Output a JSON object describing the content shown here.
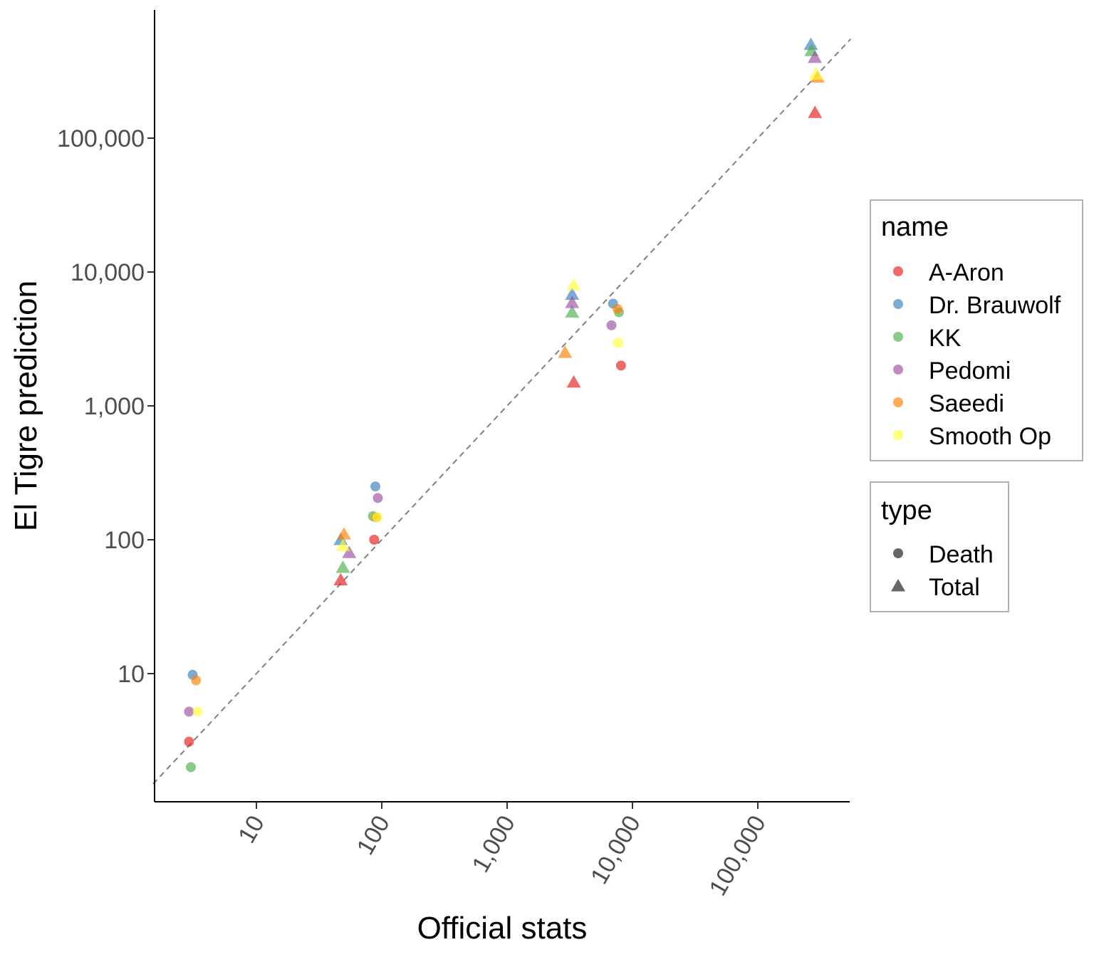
{
  "chart_data": {
    "type": "scatter",
    "xlabel": "Official stats",
    "ylabel": "El Tigre prediction",
    "x_scale": "log10",
    "y_scale": "log10",
    "xlim": [
      1.5,
      550000
    ],
    "ylim": [
      1.5,
      650000
    ],
    "x_ticks": [
      10,
      100,
      1000,
      10000,
      100000
    ],
    "x_tick_labels": [
      "10",
      "100",
      "1,000",
      "10,000",
      "100,000"
    ],
    "y_ticks": [
      10,
      100,
      1000,
      10000,
      100000
    ],
    "y_tick_labels": [
      "10",
      "100",
      "1,000",
      "10,000",
      "100,000"
    ],
    "reference_line": "y = x (dashed)",
    "grid": false,
    "legend_position": "right",
    "legend_name": {
      "title": "name",
      "entries": [
        {
          "label": "A-Aron",
          "color": "#E41A1C"
        },
        {
          "label": "Dr. Brauwolf",
          "color": "#377EB8"
        },
        {
          "label": "KK",
          "color": "#4DAF4A"
        },
        {
          "label": "Pedomi",
          "color": "#984EA3"
        },
        {
          "label": "Saeedi",
          "color": "#FF7F00"
        },
        {
          "label": "Smooth Op",
          "color": "#FFFF33"
        }
      ]
    },
    "legend_type": {
      "title": "type",
      "entries": [
        {
          "label": "Death",
          "shape": "circle"
        },
        {
          "label": "Total",
          "shape": "triangle"
        }
      ]
    },
    "series": [
      {
        "name": "A-Aron",
        "color": "#E41A1C",
        "points": [
          {
            "x": 2.9,
            "y": 3.1,
            "type": "Death"
          },
          {
            "x": 87,
            "y": 100,
            "type": "Death"
          },
          {
            "x": 8100,
            "y": 2000,
            "type": "Death"
          },
          {
            "x": 47,
            "y": 50,
            "type": "Total"
          },
          {
            "x": 3400,
            "y": 1500,
            "type": "Total"
          },
          {
            "x": 286000,
            "y": 155000,
            "type": "Total"
          }
        ]
      },
      {
        "name": "Dr. Brauwolf",
        "color": "#377EB8",
        "points": [
          {
            "x": 3.1,
            "y": 9.8,
            "type": "Death"
          },
          {
            "x": 89,
            "y": 250,
            "type": "Death"
          },
          {
            "x": 7000,
            "y": 5800,
            "type": "Death"
          },
          {
            "x": 47,
            "y": 100,
            "type": "Total"
          },
          {
            "x": 3300,
            "y": 6800,
            "type": "Total"
          },
          {
            "x": 265000,
            "y": 500000,
            "type": "Total"
          }
        ]
      },
      {
        "name": "KK",
        "color": "#4DAF4A",
        "points": [
          {
            "x": 3.0,
            "y": 2.0,
            "type": "Death"
          },
          {
            "x": 85,
            "y": 150,
            "type": "Death"
          },
          {
            "x": 7800,
            "y": 5000,
            "type": "Death"
          },
          {
            "x": 49,
            "y": 62,
            "type": "Total"
          },
          {
            "x": 3300,
            "y": 5000,
            "type": "Total"
          },
          {
            "x": 268000,
            "y": 450000,
            "type": "Total"
          }
        ]
      },
      {
        "name": "Pedomi",
        "color": "#984EA3",
        "points": [
          {
            "x": 2.9,
            "y": 5.2,
            "type": "Death"
          },
          {
            "x": 93,
            "y": 205,
            "type": "Death"
          },
          {
            "x": 6800,
            "y": 4000,
            "type": "Death"
          },
          {
            "x": 55,
            "y": 80,
            "type": "Total"
          },
          {
            "x": 3300,
            "y": 5900,
            "type": "Total"
          },
          {
            "x": 285000,
            "y": 400000,
            "type": "Total"
          }
        ]
      },
      {
        "name": "Saeedi",
        "color": "#FF7F00",
        "points": [
          {
            "x": 3.3,
            "y": 8.9,
            "type": "Death"
          },
          {
            "x": 90,
            "y": 147,
            "type": "Death"
          },
          {
            "x": 7600,
            "y": 5300,
            "type": "Death"
          },
          {
            "x": 50,
            "y": 110,
            "type": "Total"
          },
          {
            "x": 2900,
            "y": 2500,
            "type": "Total"
          },
          {
            "x": 300000,
            "y": 285000,
            "type": "Total"
          }
        ]
      },
      {
        "name": "Smooth Op",
        "color": "#FFFF33",
        "points": [
          {
            "x": 3.4,
            "y": 5.2,
            "type": "Death"
          },
          {
            "x": 92,
            "y": 147,
            "type": "Death"
          },
          {
            "x": 7700,
            "y": 2950,
            "type": "Death"
          },
          {
            "x": 49,
            "y": 90,
            "type": "Total"
          },
          {
            "x": 3400,
            "y": 8000,
            "type": "Total"
          },
          {
            "x": 290000,
            "y": 300000,
            "type": "Total"
          }
        ]
      }
    ]
  }
}
